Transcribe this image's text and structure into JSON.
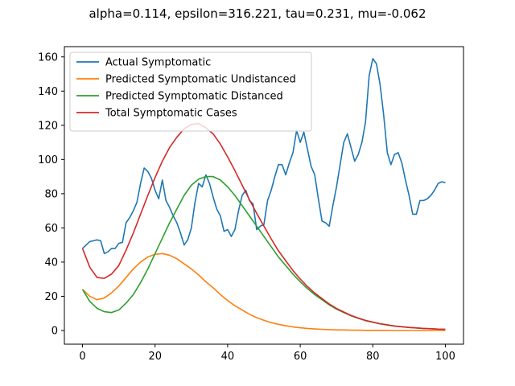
{
  "chart_data": {
    "type": "line",
    "title": "alpha=0.114, epsilon=316.221, tau=0.231, mu=-0.062",
    "xlabel": "",
    "ylabel": "",
    "xlim": [
      -5,
      105
    ],
    "ylim": [
      -8,
      166
    ],
    "xticks": [
      0,
      20,
      40,
      60,
      80,
      100
    ],
    "yticks": [
      0,
      20,
      40,
      60,
      80,
      100,
      120,
      140,
      160
    ],
    "grid": false,
    "legend_position": "top-left",
    "series": [
      {
        "name": "Actual Symptomatic",
        "color": "#1f77b4",
        "x": [
          0,
          1,
          2,
          3,
          4,
          5,
          6,
          7,
          8,
          9,
          10,
          11,
          12,
          13,
          14,
          15,
          16,
          17,
          18,
          19,
          20,
          21,
          22,
          23,
          24,
          25,
          26,
          27,
          28,
          29,
          30,
          31,
          32,
          33,
          34,
          35,
          36,
          37,
          38,
          39,
          40,
          41,
          42,
          43,
          44,
          45,
          46,
          47,
          48,
          49,
          50,
          51,
          52,
          53,
          54,
          55,
          56,
          57,
          58,
          59,
          60,
          61,
          62,
          63,
          64,
          65,
          66,
          67,
          68,
          69,
          70,
          71,
          72,
          73,
          74,
          75,
          76,
          77,
          78,
          79,
          80,
          81,
          82,
          83,
          84,
          85,
          86,
          87,
          88,
          89,
          90,
          91,
          92,
          93,
          94,
          95,
          96,
          97,
          98,
          99,
          100
        ],
        "y": [
          48,
          50,
          52,
          52.5,
          53,
          52.5,
          45,
          46,
          48,
          48,
          51,
          51.5,
          63,
          66,
          70,
          75,
          86,
          95,
          93,
          89,
          82,
          77,
          88,
          76,
          72,
          67,
          63,
          57,
          50,
          53,
          60,
          75,
          86,
          84,
          91,
          86,
          78,
          71,
          67,
          58,
          59,
          55,
          59,
          70,
          79,
          82,
          76,
          74,
          59,
          61,
          62,
          76,
          82,
          90,
          97,
          97,
          91,
          98,
          104,
          117,
          110,
          116,
          106,
          96,
          91,
          77,
          64,
          63,
          61,
          73,
          84,
          97,
          110,
          115,
          107,
          99,
          103,
          110,
          122,
          149,
          159,
          156,
          144,
          126,
          104,
          97,
          103,
          104,
          98,
          88,
          79,
          68,
          68,
          76,
          76,
          77,
          79,
          82,
          86,
          87,
          86.5
        ]
      },
      {
        "name": "Predicted Symptomatic Undistanced",
        "color": "#ff7f0e",
        "x": [
          0,
          2,
          4,
          6,
          8,
          10,
          12,
          14,
          16,
          18,
          20,
          22,
          24,
          26,
          28,
          30,
          32,
          34,
          36,
          38,
          40,
          42,
          44,
          46,
          48,
          50,
          52,
          54,
          56,
          58,
          60,
          62,
          64,
          66,
          68,
          70,
          72,
          74,
          76,
          78,
          80,
          82,
          84,
          86,
          88,
          90,
          92,
          94,
          96,
          98,
          100
        ],
        "y": [
          24,
          20,
          18,
          19,
          22,
          26,
          31,
          36,
          40,
          43,
          44.5,
          45,
          44,
          42,
          39,
          36,
          32.5,
          28.5,
          25,
          21,
          17.5,
          14.5,
          12,
          9.5,
          7.5,
          6,
          4.6,
          3.6,
          2.8,
          2.1,
          1.6,
          1.2,
          0.9,
          0.7,
          0.5,
          0.4,
          0.3,
          0.2,
          0.2,
          0.1,
          0.1,
          0.1,
          0.1,
          0,
          0,
          0,
          0,
          0,
          0,
          0,
          0
        ]
      },
      {
        "name": "Predicted Symptomatic Distanced",
        "color": "#2ca02c",
        "x": [
          0,
          2,
          4,
          6,
          8,
          10,
          12,
          14,
          16,
          18,
          20,
          22,
          24,
          26,
          28,
          30,
          32,
          34,
          36,
          38,
          40,
          42,
          44,
          46,
          48,
          50,
          52,
          54,
          56,
          58,
          60,
          62,
          64,
          66,
          68,
          70,
          72,
          74,
          76,
          78,
          80,
          82,
          84,
          86,
          88,
          90,
          92,
          94,
          96,
          98,
          100
        ],
        "y": [
          24,
          17,
          13,
          11,
          10.5,
          12,
          16,
          21,
          28,
          36,
          45,
          54,
          63,
          71,
          79,
          85,
          88.5,
          90,
          90,
          88,
          84,
          79,
          73,
          67,
          61,
          55,
          49,
          43,
          38,
          33,
          28.5,
          24.5,
          21,
          18,
          15,
          12.5,
          10.5,
          8.6,
          7.1,
          5.8,
          4.8,
          3.9,
          3.2,
          2.6,
          2.2,
          1.8,
          1.5,
          1.2,
          1.0,
          0.8,
          0.7
        ]
      },
      {
        "name": "Total Symptomatic Cases",
        "color": "#d62728",
        "x": [
          0,
          2,
          4,
          6,
          8,
          10,
          12,
          14,
          16,
          18,
          20,
          22,
          24,
          26,
          28,
          30,
          32,
          34,
          36,
          38,
          40,
          42,
          44,
          46,
          48,
          50,
          52,
          54,
          56,
          58,
          60,
          62,
          64,
          66,
          68,
          70,
          72,
          74,
          76,
          78,
          80,
          82,
          84,
          86,
          88,
          90,
          92,
          94,
          96,
          98,
          100
        ],
        "y": [
          48,
          37,
          31,
          30.5,
          33,
          38,
          47,
          57,
          68,
          79,
          89.5,
          99,
          107,
          113,
          118,
          120.5,
          121,
          118.5,
          115,
          109,
          101.5,
          93.5,
          85,
          76.5,
          68.5,
          61,
          53.6,
          46.6,
          40.8,
          35.1,
          30.1,
          25.7,
          21.9,
          18.7,
          15.5,
          12.9,
          10.8,
          8.8,
          7.3,
          5.9,
          4.9,
          4.0,
          3.3,
          2.6,
          2.2,
          1.8,
          1.5,
          1.2,
          1.0,
          0.8,
          0.7
        ]
      }
    ]
  }
}
